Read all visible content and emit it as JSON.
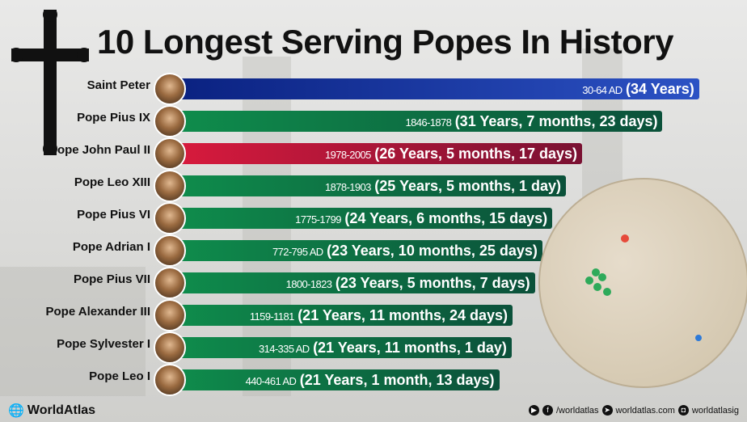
{
  "chart_data": {
    "type": "bar",
    "orientation": "horizontal",
    "title": "10 Longest Serving Popes In History",
    "categories": [
      "Saint Peter",
      "Pope Pius IX",
      "Pope John Paul II",
      "Pope Leo XIII",
      "Pope Pius VI",
      "Pope Adrian I",
      "Pope Pius VII",
      "Pope Alexander III",
      "Pope Sylvester I",
      "Pope Leo I"
    ],
    "values": [
      34,
      31.64,
      26.46,
      25.42,
      24.54,
      23.9,
      23.42,
      21.98,
      21.92,
      21.12
    ],
    "date_labels": [
      "30-64 AD",
      "1846-1878",
      "1978-2005",
      "1878-1903",
      "1775-1799",
      "772-795 AD",
      "1800-1823",
      "1159-1181",
      "314-335 AD",
      "440-461 AD"
    ],
    "duration_labels": [
      "(34 Years)",
      "(31 Years, 7 months, 23 days)",
      "(26 Years, 5 months, 17 days)",
      "(25 Years, 5 months, 1 day)",
      "(24 Years, 6 months, 15 days)",
      "(23 Years, 10 months, 25 days)",
      "(23 Years, 5 months, 7 days)",
      "(21 Years, 11 months, 24 days)",
      "(21 Years, 11 months, 1 day)",
      "(21 Years, 1 month, 13 days)"
    ],
    "bar_colors": [
      "blue",
      "green",
      "red",
      "green",
      "green",
      "green",
      "green",
      "green",
      "green",
      "green"
    ],
    "colors": {
      "blue": [
        "#0a2180",
        "#2c52c4"
      ],
      "green": [
        "#0f8d4c",
        "#0b513a"
      ],
      "red": [
        "#d91a3d",
        "#7a1132"
      ]
    },
    "unit": "years"
  },
  "footer": {
    "brand": "WorldAtlas",
    "facebook": "/worldatlas",
    "website": "worldatlas.com",
    "instagram": "worldatlasig"
  }
}
